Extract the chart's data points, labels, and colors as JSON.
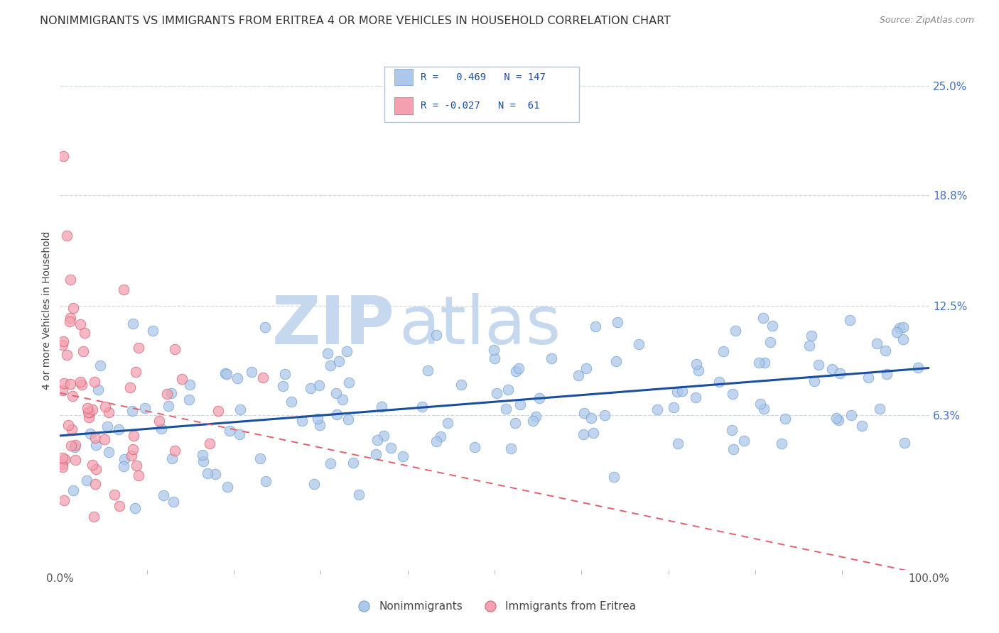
{
  "title": "NONIMMIGRANTS VS IMMIGRANTS FROM ERITREA 4 OR MORE VEHICLES IN HOUSEHOLD CORRELATION CHART",
  "source": "Source: ZipAtlas.com",
  "ylabel": "4 or more Vehicles in Household",
  "xlim": [
    0,
    100
  ],
  "ylim": [
    -2.5,
    27
  ],
  "xtick_positions": [
    0,
    100
  ],
  "xtick_labels": [
    "0.0%",
    "100.0%"
  ],
  "ytick_values": [
    6.3,
    12.5,
    18.8,
    25.0
  ],
  "ytick_labels": [
    "6.3%",
    "12.5%",
    "18.8%",
    "25.0%"
  ],
  "nonimmigrant_color": "#adc8ea",
  "nonimmigrant_edge": "#6fa0d0",
  "immigrant_color": "#f4a0b0",
  "immigrant_edge": "#d06070",
  "trend_nonimmigrant_color": "#1a4fa0",
  "trend_immigrant_color": "#e06070",
  "watermark_zip_color": "#c5d8ed",
  "watermark_atlas_color": "#c5d8ed",
  "r_nonimmigrant": 0.469,
  "n_nonimmigrant": 147,
  "r_immigrant": -0.027,
  "n_immigrant": 61,
  "legend_box_color": "#ffffff",
  "legend_box_edge": "#b0c4d8",
  "legend_text_color": "#1a4fa0",
  "title_color": "#333333",
  "source_color": "#888888",
  "ytick_color": "#4472c4",
  "xtick_color": "#555555",
  "ylabel_color": "#444444",
  "grid_color": "#d0d8e0",
  "bottom_legend_text_color": "#444444",
  "scatter_size": 110,
  "scatter_alpha": 0.75,
  "trend_linewidth_blue": 2.2,
  "trend_linewidth_pink": 1.4,
  "seed_nonimm": 42,
  "seed_imm": 99
}
